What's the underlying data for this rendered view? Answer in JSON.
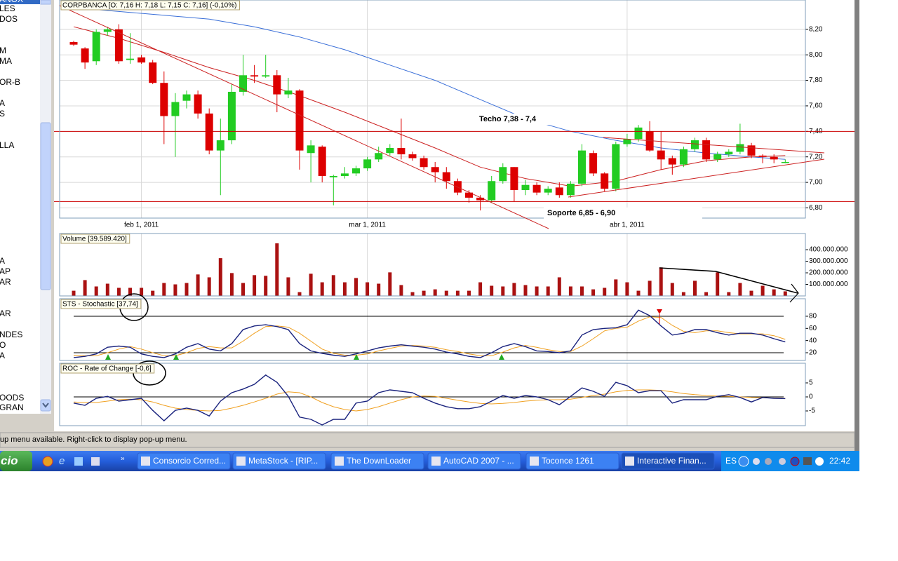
{
  "window": {
    "sidebar_items": [
      "ANOX",
      "LES",
      "DOS",
      "M",
      "MA",
      "OR-B",
      "A",
      "S",
      "LLA",
      "A",
      "AP",
      "AR",
      "AR",
      "NDES",
      "O",
      "A",
      "OODS",
      "GRAN"
    ],
    "status_bar": "up menu available. Right-click to display pop-up menu.",
    "taskbar": {
      "start": "cio",
      "items": [
        "Consorcio Corred...",
        "MetaStock - [RIP...",
        "The DownLoader",
        "AutoCAD 2007 - ...",
        "Toconce 1261",
        "Interactive Finan..."
      ],
      "language": "ES",
      "clock": "22:42"
    }
  },
  "chart_data": [
    {
      "type": "candlestick",
      "title": "CORPBANCA [O: 7,16  H: 7,18  L: 7,15  C: 7,16] (-0,10%)",
      "categories": [
        null,
        null,
        null,
        null,
        null,
        null,
        "feb 1, 2011",
        null,
        null,
        null,
        null,
        null,
        null,
        null,
        null,
        null,
        null,
        null,
        null,
        null,
        null,
        null,
        null,
        null,
        null,
        null,
        "mar 1, 2011",
        null,
        null,
        null,
        null,
        null,
        null,
        null,
        null,
        null,
        null,
        null,
        null,
        null,
        null,
        null,
        null,
        null,
        null,
        null,
        null,
        null,
        null,
        "abr 1, 2011",
        null,
        null,
        null,
        null,
        null,
        null,
        null,
        null,
        null,
        null,
        null,
        null,
        null,
        null
      ],
      "open": [
        8.1,
        8.05,
        7.95,
        8.18,
        8.2,
        7.96,
        7.98,
        7.94,
        7.78,
        7.52,
        7.64,
        7.69,
        7.54,
        7.25,
        7.33,
        7.71,
        7.84,
        7.83,
        7.84,
        7.69,
        7.72,
        7.23,
        7.28,
        7.04,
        7.05,
        7.07,
        7.11,
        7.18,
        7.23,
        7.27,
        7.22,
        7.19,
        7.12,
        7.08,
        7.01,
        6.92,
        6.88,
        6.86,
        7.01,
        7.12,
        6.94,
        6.98,
        6.92,
        6.96,
        6.9,
        6.99,
        7.23,
        7.07,
        6.95,
        7.3,
        7.34,
        7.4,
        7.25,
        7.19,
        7.14,
        7.26,
        7.33,
        7.18,
        7.22,
        7.24,
        7.29,
        7.21,
        7.2,
        7.16
      ],
      "high": [
        8.11,
        8.06,
        8.2,
        8.22,
        8.24,
        8.17,
        8.0,
        7.96,
        7.87,
        7.7,
        7.72,
        7.72,
        7.58,
        7.5,
        7.77,
        8.0,
        7.92,
        8.0,
        7.88,
        7.82,
        7.73,
        7.33,
        7.29,
        7.06,
        7.12,
        7.13,
        7.2,
        7.28,
        7.3,
        7.5,
        7.24,
        7.21,
        7.16,
        7.12,
        7.03,
        6.94,
        6.9,
        7.05,
        7.15,
        7.12,
        7.02,
        7.0,
        6.97,
        7.0,
        7.01,
        7.3,
        7.25,
        7.08,
        7.32,
        7.38,
        7.45,
        7.48,
        7.4,
        7.21,
        7.28,
        7.35,
        7.35,
        7.24,
        7.26,
        7.46,
        7.31,
        7.22,
        7.22,
        7.18
      ],
      "low": [
        8.07,
        7.89,
        7.92,
        8.15,
        7.93,
        7.93,
        7.93,
        7.77,
        7.3,
        7.2,
        7.58,
        7.5,
        7.22,
        6.9,
        7.3,
        7.68,
        7.78,
        7.82,
        7.55,
        7.66,
        7.1,
        7.0,
        7.0,
        6.82,
        7.03,
        7.05,
        7.09,
        7.16,
        7.21,
        7.18,
        7.17,
        7.1,
        7.0,
        6.95,
        6.9,
        6.84,
        6.78,
        6.84,
        6.99,
        6.85,
        6.9,
        6.9,
        6.9,
        6.88,
        6.88,
        6.97,
        7.05,
        6.93,
        6.93,
        7.28,
        7.32,
        7.24,
        7.1,
        7.06,
        7.12,
        7.24,
        7.16,
        7.16,
        7.2,
        7.22,
        7.19,
        7.15,
        7.15,
        7.15
      ],
      "close": [
        8.08,
        7.94,
        8.18,
        8.2,
        7.95,
        7.97,
        7.94,
        7.78,
        7.52,
        7.63,
        7.69,
        7.54,
        7.25,
        7.33,
        7.71,
        7.84,
        7.83,
        7.84,
        7.69,
        7.72,
        7.25,
        7.29,
        7.05,
        7.05,
        7.07,
        7.11,
        7.18,
        7.23,
        7.27,
        7.22,
        7.19,
        7.12,
        7.08,
        7.01,
        6.92,
        6.88,
        6.86,
        7.01,
        7.12,
        6.94,
        6.98,
        6.92,
        6.95,
        6.9,
        6.99,
        7.25,
        7.07,
        6.95,
        7.3,
        7.34,
        7.43,
        7.25,
        7.18,
        7.14,
        7.26,
        7.33,
        7.18,
        7.22,
        7.24,
        7.3,
        7.21,
        7.2,
        7.18,
        7.16
      ],
      "up_color": "#22cc22",
      "down_color": "#dd0000",
      "lines": [
        {
          "color": "#3a6fd8",
          "x": [
            0,
            4,
            8,
            12,
            16,
            20,
            24,
            28,
            32,
            36,
            40,
            44,
            48,
            52,
            56,
            60,
            63
          ],
          "values": [
            8.37,
            8.34,
            8.31,
            8.28,
            8.22,
            8.14,
            8.04,
            7.92,
            7.8,
            7.65,
            7.5,
            7.4,
            7.33,
            7.27,
            7.23,
            7.2,
            7.18
          ]
        },
        {
          "color": "#cc2222",
          "x": [
            0,
            4,
            8,
            12,
            16,
            20,
            24,
            28,
            32,
            36,
            40,
            44,
            48,
            52,
            56,
            60,
            63
          ],
          "values": [
            8.22,
            8.13,
            8.02,
            7.9,
            7.8,
            7.68,
            7.55,
            7.41,
            7.27,
            7.12,
            7.03,
            6.97,
            7.01,
            7.1,
            7.17,
            7.2,
            7.21
          ]
        }
      ],
      "hlines": [
        7.4,
        6.85
      ],
      "hline_color": "#cc0000",
      "annotations": [
        "Techo 7,38 - 7,4",
        "Soporte 6,85 - 6,90"
      ],
      "ylim": [
        6.72,
        8.43
      ],
      "yticks": [
        {
          "value": 6.8,
          "label": "6,80"
        },
        {
          "value": 7.0,
          "label": "7,00"
        },
        {
          "value": 7.2,
          "label": "7,20"
        },
        {
          "value": 7.4,
          "label": "7,40"
        },
        {
          "value": 7.6,
          "label": "7,60"
        },
        {
          "value": 7.8,
          "label": "7,80"
        },
        {
          "value": 8.0,
          "label": "8,00"
        },
        {
          "value": 8.2,
          "label": "8,20"
        }
      ],
      "grid": true
    },
    {
      "type": "bar",
      "title": "Volume [39.589.420]",
      "values": [
        45000000,
        137000000,
        82000000,
        106000000,
        70000000,
        70000000,
        70000000,
        45000000,
        112000000,
        100000000,
        112000000,
        186000000,
        161000000,
        327000000,
        198000000,
        112000000,
        180000000,
        174000000,
        455000000,
        161000000,
        33000000,
        192000000,
        118000000,
        180000000,
        118000000,
        155000000,
        118000000,
        106000000,
        204000000,
        94000000,
        33000000,
        45000000,
        57000000,
        45000000,
        45000000,
        45000000,
        118000000,
        88000000,
        82000000,
        112000000,
        94000000,
        82000000,
        82000000,
        161000000,
        82000000,
        82000000,
        57000000,
        70000000,
        143000000,
        118000000,
        45000000,
        131000000,
        247000000,
        112000000,
        33000000,
        131000000,
        33000000,
        204000000,
        33000000,
        112000000,
        45000000,
        88000000,
        57000000,
        39589420
      ],
      "color": "#aa1111",
      "ylim": [
        0,
        540000000
      ],
      "yticks": [
        {
          "value": 100000000,
          "label": "100.000.000"
        },
        {
          "value": 200000000,
          "label": "200.000.000"
        },
        {
          "value": 300000000,
          "label": "300.000.000"
        },
        {
          "value": 400000000,
          "label": "400.000.000"
        }
      ]
    },
    {
      "type": "line",
      "title": "STS - Stochastic [37,74]",
      "series": [
        {
          "color": "#1a237e",
          "values": [
            12,
            14,
            18,
            29,
            31,
            29,
            18,
            14,
            12,
            18,
            29,
            35,
            26,
            23,
            35,
            58,
            64,
            66,
            63,
            58,
            35,
            23,
            19,
            16,
            14,
            18,
            23,
            28,
            31,
            33,
            31,
            29,
            26,
            21,
            18,
            14,
            12,
            20,
            30,
            35,
            30,
            23,
            22,
            20,
            23,
            49,
            58,
            60,
            61,
            66,
            90,
            81,
            64,
            49,
            52,
            58,
            58,
            53,
            49,
            52,
            52,
            49,
            43,
            37.74
          ]
        },
        {
          "color": "#f0a020",
          "values": [
            16,
            15,
            15,
            20,
            26,
            30,
            26,
            20,
            15,
            15,
            20,
            27,
            30,
            28,
            28,
            39,
            52,
            63,
            64,
            62,
            52,
            39,
            26,
            19,
            16,
            16,
            18,
            23,
            27,
            31,
            32,
            31,
            29,
            25,
            22,
            18,
            15,
            15,
            21,
            28,
            32,
            29,
            25,
            22,
            22,
            31,
            43,
            56,
            60,
            62,
            72,
            79,
            78,
            65,
            55,
            53,
            56,
            56,
            53,
            51,
            51,
            51,
            48,
            42
          ]
        }
      ],
      "hlines": [
        80,
        20
      ],
      "ylim": [
        7.3,
        108.8
      ],
      "yticks": [
        20,
        40,
        60,
        80
      ]
    },
    {
      "type": "line",
      "title": "ROC - Rate of Change [-0,6]",
      "series": [
        {
          "color": "#1a237e",
          "values": [
            -2.2,
            -3,
            -0.5,
            0.2,
            -1.5,
            -1,
            -0.5,
            -4.8,
            -8.5,
            -4.8,
            -4,
            -4.8,
            -6.8,
            -1.5,
            1.5,
            2.8,
            4.5,
            7.8,
            5.2,
            0.2,
            -7.2,
            -8,
            -10,
            -8,
            -8,
            -2.2,
            -1.5,
            1.5,
            2.5,
            2,
            1.5,
            -0.5,
            -2.2,
            -3.5,
            -4.2,
            -4.2,
            -3.5,
            -1.5,
            0.5,
            -0.5,
            0.5,
            0,
            -1,
            -2.8,
            0.2,
            3.2,
            2,
            0.2,
            5.2,
            4,
            1.5,
            2.2,
            2.2,
            -2.2,
            -1,
            -1,
            -1,
            0.2,
            0.8,
            -0.2,
            -1.8,
            -0.2,
            -0.5,
            -0.6
          ]
        },
        {
          "color": "#f0a020",
          "values": [
            -1.8,
            -2,
            -2,
            -1.5,
            -1,
            -0.8,
            -1,
            -1.8,
            -3,
            -4,
            -4.5,
            -4.8,
            -5,
            -4.8,
            -4,
            -3,
            -1.8,
            -0.5,
            1,
            1.8,
            1.5,
            0,
            -2,
            -3.5,
            -4.5,
            -5,
            -4.5,
            -3.5,
            -2.2,
            -1,
            0,
            0.3,
            0.2,
            -0.5,
            -1.2,
            -1.8,
            -2.3,
            -2.5,
            -2.3,
            -2,
            -1.5,
            -1.2,
            -1,
            -1,
            -0.8,
            -0.2,
            0.5,
            1,
            1.8,
            2.3,
            2.5,
            2.5,
            2.3,
            1.8,
            1.2,
            0.8,
            0.5,
            0.3,
            0.2,
            0,
            -0.2,
            -0.3,
            -0.4,
            -0.5
          ]
        }
      ],
      "hlines": [
        0
      ],
      "ylim": [
        -10.25,
        12
      ],
      "yticks": [
        5,
        0,
        -5
      ]
    }
  ]
}
